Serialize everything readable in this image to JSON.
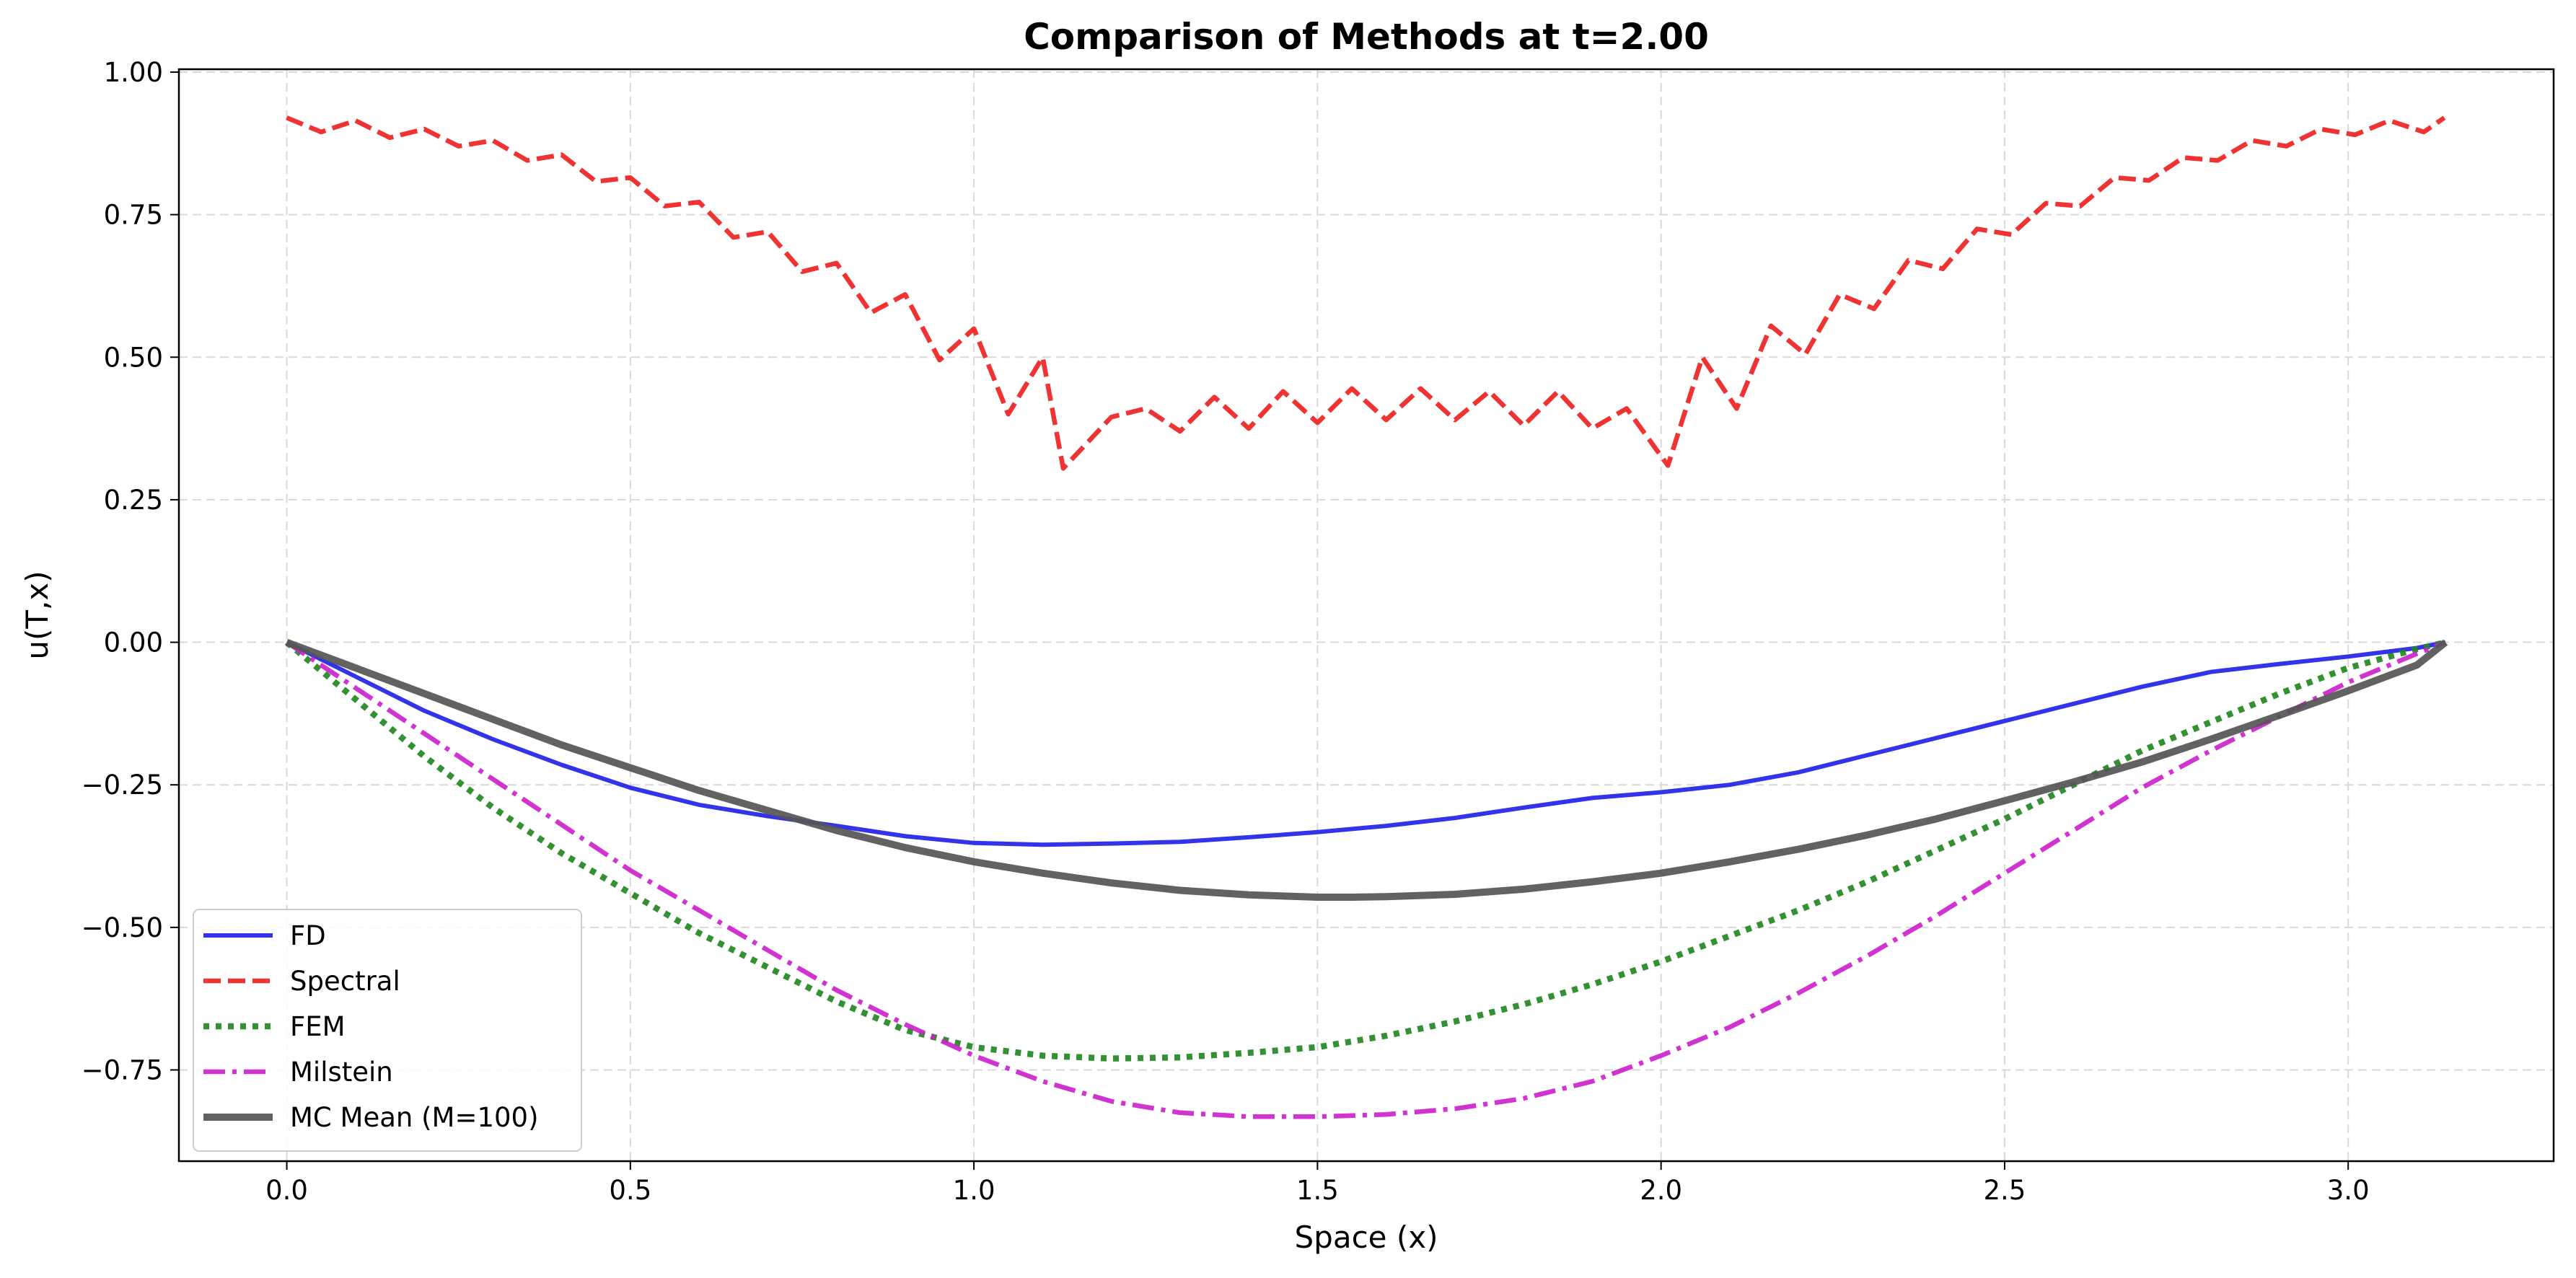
{
  "chart_data": {
    "type": "line",
    "title": "Comparison of Methods at t=2.00",
    "xlabel": "Space (x)",
    "ylabel": "u(T,x)",
    "xlim": [
      -0.157,
      3.299
    ],
    "ylim": [
      -0.91,
      1.005
    ],
    "xticks": [
      0.0,
      0.5,
      1.0,
      1.5,
      2.0,
      2.5,
      3.0
    ],
    "xtick_labels": [
      "0.0",
      "0.5",
      "1.0",
      "1.5",
      "2.0",
      "2.5",
      "3.0"
    ],
    "yticks": [
      1.0,
      0.75,
      0.5,
      0.25,
      0.0,
      -0.25,
      -0.5,
      -0.75
    ],
    "ytick_labels": [
      "1.00",
      "0.75",
      "0.50",
      "0.25",
      "0.00",
      "−0.25",
      "−0.50",
      "−0.75"
    ],
    "grid": true,
    "legend_position": "lower-left",
    "series": [
      {
        "name": "FD",
        "color": "#2222e8",
        "style": "solid",
        "x": [
          0.0,
          0.1,
          0.2,
          0.3,
          0.4,
          0.5,
          0.6,
          0.7,
          0.8,
          0.9,
          1.0,
          1.1,
          1.2,
          1.3,
          1.4,
          1.5,
          1.6,
          1.7,
          1.8,
          1.9,
          2.0,
          2.1,
          2.2,
          2.3,
          2.4,
          2.5,
          2.6,
          2.7,
          2.8,
          2.9,
          3.0,
          3.1,
          3.1416
        ],
        "y": [
          0.0,
          -0.06,
          -0.12,
          -0.17,
          -0.215,
          -0.255,
          -0.285,
          -0.305,
          -0.322,
          -0.34,
          -0.352,
          -0.355,
          -0.353,
          -0.35,
          -0.342,
          -0.333,
          -0.322,
          -0.308,
          -0.29,
          -0.273,
          -0.263,
          -0.25,
          -0.228,
          -0.198,
          -0.168,
          -0.138,
          -0.108,
          -0.078,
          -0.052,
          -0.038,
          -0.025,
          -0.01,
          0.0
        ]
      },
      {
        "name": "Spectral",
        "color": "#ee2222",
        "style": "dashed",
        "x": [
          0.0,
          0.05,
          0.1,
          0.15,
          0.2,
          0.25,
          0.3,
          0.35,
          0.4,
          0.45,
          0.5,
          0.55,
          0.6,
          0.65,
          0.7,
          0.75,
          0.8,
          0.85,
          0.9,
          0.95,
          1.0,
          1.05,
          1.1,
          1.13,
          1.2,
          1.25,
          1.3,
          1.35,
          1.4,
          1.45,
          1.5,
          1.55,
          1.6,
          1.65,
          1.7,
          1.75,
          1.8,
          1.85,
          1.9,
          1.95,
          2.01,
          2.06,
          2.11,
          2.16,
          2.21,
          2.26,
          2.31,
          2.36,
          2.41,
          2.46,
          2.51,
          2.56,
          2.61,
          2.66,
          2.71,
          2.76,
          2.81,
          2.86,
          2.91,
          2.96,
          3.01,
          3.06,
          3.11,
          3.14
        ],
        "y": [
          0.92,
          0.895,
          0.915,
          0.885,
          0.9,
          0.87,
          0.88,
          0.845,
          0.855,
          0.808,
          0.815,
          0.765,
          0.772,
          0.71,
          0.72,
          0.65,
          0.665,
          0.578,
          0.61,
          0.495,
          0.55,
          0.4,
          0.5,
          0.305,
          0.395,
          0.41,
          0.37,
          0.43,
          0.375,
          0.44,
          0.385,
          0.445,
          0.39,
          0.445,
          0.39,
          0.44,
          0.38,
          0.44,
          0.375,
          0.41,
          0.31,
          0.5,
          0.41,
          0.555,
          0.505,
          0.61,
          0.585,
          0.67,
          0.655,
          0.725,
          0.715,
          0.77,
          0.765,
          0.815,
          0.81,
          0.85,
          0.845,
          0.88,
          0.87,
          0.9,
          0.89,
          0.915,
          0.895,
          0.92
        ]
      },
      {
        "name": "FEM",
        "color": "#228822",
        "style": "dotted",
        "x": [
          0.0,
          0.1,
          0.2,
          0.3,
          0.4,
          0.5,
          0.6,
          0.7,
          0.8,
          0.9,
          1.0,
          1.1,
          1.2,
          1.3,
          1.4,
          1.5,
          1.6,
          1.7,
          1.8,
          1.9,
          2.0,
          2.1,
          2.2,
          2.3,
          2.4,
          2.5,
          2.6,
          2.7,
          2.8,
          2.9,
          3.0,
          3.1,
          3.1416
        ],
        "y": [
          0.0,
          -0.1,
          -0.2,
          -0.29,
          -0.37,
          -0.44,
          -0.51,
          -0.57,
          -0.63,
          -0.68,
          -0.71,
          -0.725,
          -0.73,
          -0.728,
          -0.72,
          -0.71,
          -0.69,
          -0.665,
          -0.635,
          -0.6,
          -0.56,
          -0.515,
          -0.47,
          -0.42,
          -0.365,
          -0.31,
          -0.25,
          -0.19,
          -0.14,
          -0.09,
          -0.045,
          -0.012,
          0.0
        ]
      },
      {
        "name": "Milstein",
        "color": "#cc22cc",
        "style": "dashdot",
        "x": [
          0.0,
          0.1,
          0.2,
          0.3,
          0.4,
          0.5,
          0.6,
          0.7,
          0.8,
          0.9,
          1.0,
          1.1,
          1.2,
          1.3,
          1.4,
          1.5,
          1.6,
          1.7,
          1.8,
          1.9,
          2.0,
          2.1,
          2.2,
          2.3,
          2.4,
          2.5,
          2.6,
          2.7,
          2.8,
          2.9,
          3.0,
          3.1,
          3.1416
        ],
        "y": [
          0.0,
          -0.08,
          -0.16,
          -0.24,
          -0.32,
          -0.4,
          -0.47,
          -0.54,
          -0.61,
          -0.67,
          -0.725,
          -0.77,
          -0.805,
          -0.825,
          -0.832,
          -0.832,
          -0.828,
          -0.818,
          -0.8,
          -0.77,
          -0.725,
          -0.675,
          -0.615,
          -0.55,
          -0.48,
          -0.405,
          -0.33,
          -0.255,
          -0.19,
          -0.13,
          -0.07,
          -0.02,
          0.0
        ]
      },
      {
        "name": "MC Mean (M=100)",
        "color": "#555555",
        "style": "solid-thick",
        "x": [
          0.0,
          0.1,
          0.2,
          0.3,
          0.4,
          0.5,
          0.6,
          0.7,
          0.8,
          0.9,
          1.0,
          1.1,
          1.2,
          1.3,
          1.4,
          1.5,
          1.55,
          1.6,
          1.7,
          1.8,
          1.9,
          2.0,
          2.1,
          2.2,
          2.3,
          2.4,
          2.5,
          2.6,
          2.7,
          2.8,
          2.9,
          3.0,
          3.1,
          3.1416
        ],
        "y": [
          0.0,
          -0.045,
          -0.09,
          -0.135,
          -0.18,
          -0.22,
          -0.26,
          -0.295,
          -0.33,
          -0.36,
          -0.385,
          -0.405,
          -0.422,
          -0.435,
          -0.443,
          -0.447,
          -0.447,
          -0.446,
          -0.442,
          -0.433,
          -0.42,
          -0.405,
          -0.385,
          -0.363,
          -0.338,
          -0.31,
          -0.278,
          -0.245,
          -0.21,
          -0.17,
          -0.128,
          -0.085,
          -0.04,
          0.0
        ]
      }
    ]
  }
}
